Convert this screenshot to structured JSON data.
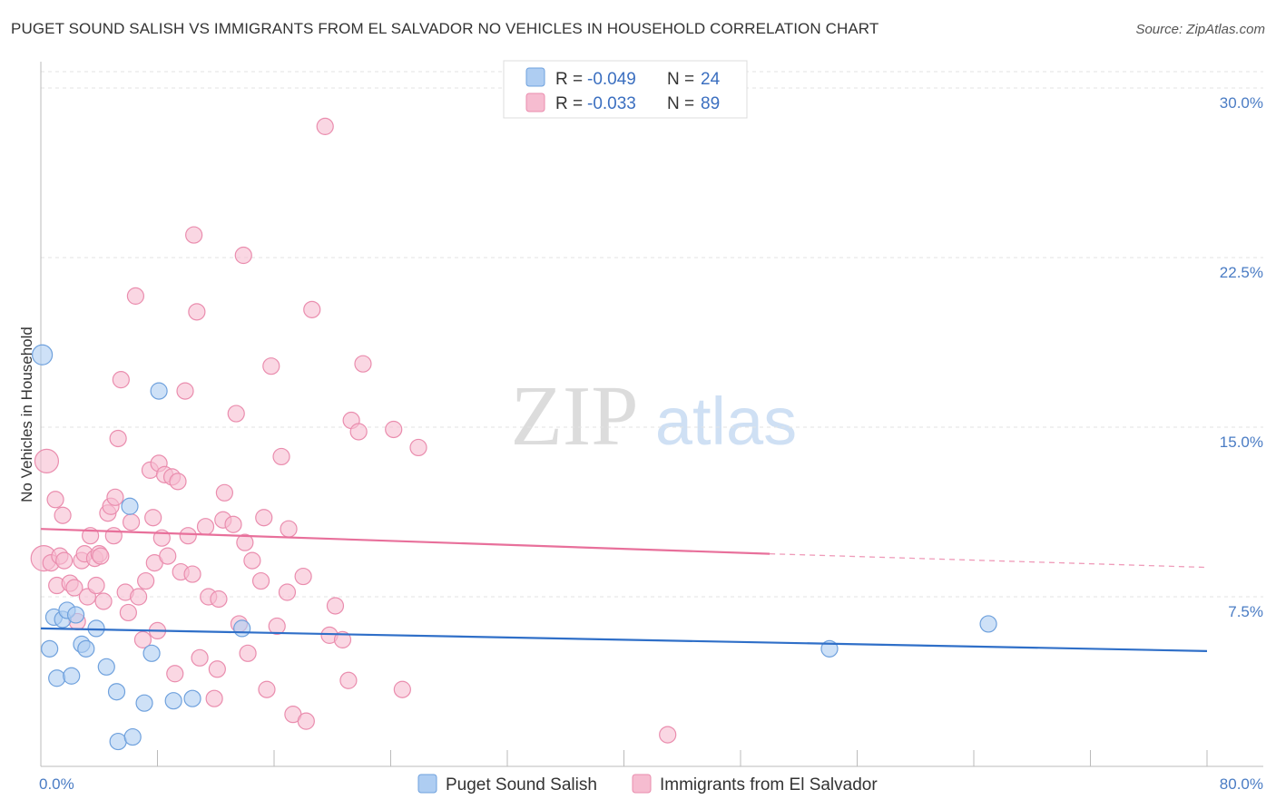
{
  "title": "PUGET SOUND SALISH VS IMMIGRANTS FROM EL SALVADOR NO VEHICLES IN HOUSEHOLD CORRELATION CHART",
  "source": "Source: ZipAtlas.com",
  "watermark": {
    "zip": "ZIP",
    "atlas": "atlas"
  },
  "colors": {
    "blue_fill": "#aecdf2",
    "blue_stroke": "#6fa1dd",
    "blue_line": "#2f6fc8",
    "pink_fill": "#f6bcd0",
    "pink_stroke": "#ea8dae",
    "pink_line": "#e8709b",
    "tick_text": "#4a7cc4"
  },
  "legend_stats": [
    {
      "r_label": "R =",
      "r_value": "-0.049",
      "n_label": "N =",
      "n_value": "24"
    },
    {
      "r_label": "R =",
      "r_value": "-0.033",
      "n_label": "N =",
      "n_value": "89"
    }
  ],
  "chart_data": {
    "type": "scatter",
    "ylabel": "No Vehicles in Household",
    "xlim": [
      0,
      80
    ],
    "ylim": [
      0,
      30
    ],
    "x_tick_labels": [
      "0.0%",
      "80.0%"
    ],
    "y_ticks": [
      7.5,
      15.0,
      22.5,
      30.0
    ],
    "y_tick_labels": [
      "7.5%",
      "15.0%",
      "22.5%",
      "30.0%"
    ],
    "grid": "dashed-horizontal",
    "legend_position": "top-center",
    "series": [
      {
        "name": "Puget Sound Salish",
        "color": "blue",
        "points": [
          [
            0.1,
            18.2
          ],
          [
            0.6,
            5.2
          ],
          [
            1.1,
            3.9
          ],
          [
            0.9,
            6.6
          ],
          [
            1.5,
            6.5
          ],
          [
            1.8,
            6.9
          ],
          [
            2.1,
            4.0
          ],
          [
            2.4,
            6.7
          ],
          [
            2.8,
            5.4
          ],
          [
            3.1,
            5.2
          ],
          [
            3.8,
            6.1
          ],
          [
            4.5,
            4.4
          ],
          [
            5.2,
            3.3
          ],
          [
            5.3,
            1.1
          ],
          [
            6.1,
            11.5
          ],
          [
            6.3,
            1.3
          ],
          [
            7.1,
            2.8
          ],
          [
            7.6,
            5.0
          ],
          [
            8.1,
            16.6
          ],
          [
            9.1,
            2.9
          ],
          [
            10.4,
            3.0
          ],
          [
            13.8,
            6.1
          ],
          [
            54.1,
            5.2
          ],
          [
            65.0,
            6.3
          ]
        ]
      },
      {
        "name": "Immigrants from El Salvador",
        "color": "pink",
        "points": [
          [
            0.2,
            9.2
          ],
          [
            0.4,
            13.5
          ],
          [
            0.7,
            9.0
          ],
          [
            1.0,
            11.8
          ],
          [
            1.1,
            8.0
          ],
          [
            1.3,
            9.3
          ],
          [
            1.5,
            11.1
          ],
          [
            1.6,
            9.1
          ],
          [
            2.0,
            8.1
          ],
          [
            2.3,
            7.9
          ],
          [
            2.5,
            6.4
          ],
          [
            2.8,
            9.1
          ],
          [
            3.0,
            9.4
          ],
          [
            3.2,
            7.5
          ],
          [
            3.4,
            10.2
          ],
          [
            3.7,
            9.2
          ],
          [
            3.8,
            8.0
          ],
          [
            4.0,
            9.4
          ],
          [
            4.1,
            9.3
          ],
          [
            4.3,
            7.3
          ],
          [
            4.6,
            11.2
          ],
          [
            4.8,
            11.5
          ],
          [
            5.0,
            10.2
          ],
          [
            5.1,
            11.9
          ],
          [
            5.3,
            14.5
          ],
          [
            5.5,
            17.1
          ],
          [
            5.8,
            7.7
          ],
          [
            6.0,
            6.8
          ],
          [
            6.2,
            10.8
          ],
          [
            6.5,
            20.8
          ],
          [
            6.7,
            7.5
          ],
          [
            7.0,
            5.6
          ],
          [
            7.2,
            8.2
          ],
          [
            7.5,
            13.1
          ],
          [
            7.7,
            11.0
          ],
          [
            7.8,
            9.0
          ],
          [
            8.0,
            6.0
          ],
          [
            8.1,
            13.4
          ],
          [
            8.3,
            10.1
          ],
          [
            8.5,
            12.9
          ],
          [
            8.7,
            9.3
          ],
          [
            9.0,
            12.8
          ],
          [
            9.2,
            4.1
          ],
          [
            9.4,
            12.6
          ],
          [
            9.6,
            8.6
          ],
          [
            9.9,
            16.6
          ],
          [
            10.1,
            10.2
          ],
          [
            10.4,
            8.5
          ],
          [
            10.5,
            23.5
          ],
          [
            10.7,
            20.1
          ],
          [
            10.9,
            4.8
          ],
          [
            11.3,
            10.6
          ],
          [
            11.5,
            7.5
          ],
          [
            11.9,
            3.0
          ],
          [
            12.1,
            4.3
          ],
          [
            12.2,
            7.4
          ],
          [
            12.5,
            10.9
          ],
          [
            12.6,
            12.1
          ],
          [
            13.2,
            10.7
          ],
          [
            13.4,
            15.6
          ],
          [
            13.6,
            6.3
          ],
          [
            13.9,
            22.6
          ],
          [
            14.0,
            9.9
          ],
          [
            14.2,
            5.0
          ],
          [
            14.5,
            9.1
          ],
          [
            15.1,
            8.2
          ],
          [
            15.3,
            11.0
          ],
          [
            15.5,
            3.4
          ],
          [
            15.8,
            17.7
          ],
          [
            16.2,
            6.2
          ],
          [
            16.5,
            13.7
          ],
          [
            16.9,
            7.7
          ],
          [
            17.0,
            10.5
          ],
          [
            17.3,
            2.3
          ],
          [
            18.0,
            8.4
          ],
          [
            18.2,
            2.0
          ],
          [
            18.6,
            20.2
          ],
          [
            19.5,
            28.3
          ],
          [
            19.8,
            5.8
          ],
          [
            20.2,
            7.1
          ],
          [
            20.7,
            5.6
          ],
          [
            21.1,
            3.8
          ],
          [
            21.3,
            15.3
          ],
          [
            21.8,
            14.8
          ],
          [
            22.1,
            17.8
          ],
          [
            24.2,
            14.9
          ],
          [
            24.8,
            3.4
          ],
          [
            25.9,
            14.1
          ],
          [
            43.0,
            1.4
          ]
        ]
      }
    ],
    "trend_lines": [
      {
        "series": "Puget Sound Salish",
        "x": [
          0,
          80
        ],
        "y": [
          6.1,
          5.1
        ]
      },
      {
        "series": "Immigrants from El Salvador",
        "x": [
          0,
          50
        ],
        "y": [
          10.5,
          9.4
        ],
        "dashed_extension_to": [
          80,
          8.8
        ]
      }
    ]
  }
}
